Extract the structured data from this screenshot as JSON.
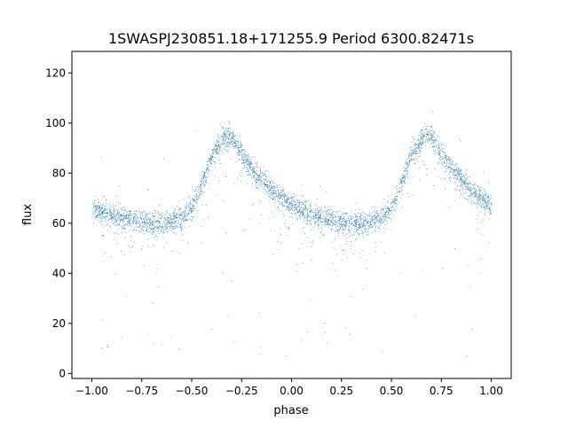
{
  "chart_data": {
    "type": "scatter",
    "title": "1SWASPJ230851.18+171255.9 Period 6300.82471s",
    "xlabel": "phase",
    "ylabel": "flux",
    "xlim": [
      -1.1,
      1.1
    ],
    "ylim": [
      -2,
      128.6
    ],
    "xticks": [
      -1.0,
      -0.75,
      -0.5,
      -0.25,
      0.0,
      0.25,
      0.5,
      0.75,
      1.0
    ],
    "xtick_labels": [
      "−1.00",
      "−0.75",
      "−0.50",
      "−0.25",
      "0.00",
      "0.25",
      "0.50",
      "0.75",
      "1.00"
    ],
    "yticks": [
      0,
      20,
      40,
      60,
      80,
      100,
      120
    ],
    "ytick_labels": [
      "0",
      "20",
      "40",
      "60",
      "80",
      "100",
      "120"
    ],
    "grid": false,
    "point_color": "#1f77b4",
    "trend": {
      "phase": [
        -1.0,
        -0.9,
        -0.8,
        -0.7,
        -0.6,
        -0.55,
        -0.5,
        -0.45,
        -0.4,
        -0.35,
        -0.33,
        -0.3,
        -0.25,
        -0.2,
        -0.1,
        0.0,
        0.1,
        0.2,
        0.3,
        0.4,
        0.45,
        0.5,
        0.55,
        0.6,
        0.65,
        0.67,
        0.7,
        0.75,
        0.8,
        0.9,
        1.0
      ],
      "flux": [
        66,
        63.5,
        61.5,
        60,
        61,
        63,
        66,
        76,
        87,
        94,
        95,
        94,
        88,
        82,
        73,
        67,
        63.5,
        61.5,
        60,
        61,
        63,
        66,
        76,
        87,
        94,
        95,
        94,
        88,
        82,
        73,
        67
      ]
    }
  }
}
